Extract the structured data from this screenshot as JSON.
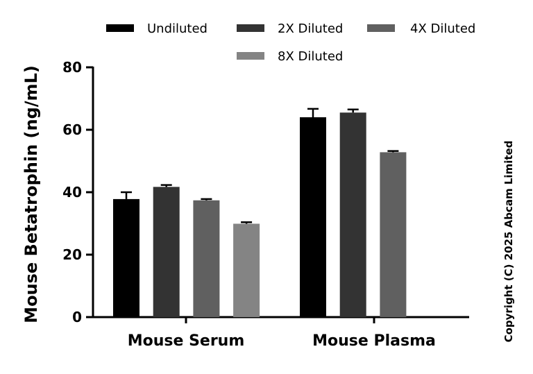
{
  "chart_data": {
    "type": "bar",
    "categories": [
      "Mouse Serum",
      "Mouse Plasma"
    ],
    "series": [
      {
        "name": "Undiluted",
        "color": "#000000",
        "values": [
          37.8,
          64.0
        ],
        "errors": [
          2.2,
          2.7
        ]
      },
      {
        "name": "2X Diluted",
        "color": "#333333",
        "values": [
          41.7,
          65.5
        ],
        "errors": [
          0.6,
          1.0
        ]
      },
      {
        "name": "4X Diluted",
        "color": "#606060",
        "values": [
          37.4,
          52.8
        ],
        "errors": [
          0.4,
          0.4
        ]
      },
      {
        "name": "8X Diluted",
        "color": "#848484",
        "values": [
          29.9,
          null
        ],
        "errors": [
          0.5,
          null
        ]
      }
    ],
    "ylabel": "Mouse Betatrophin (ng/mL)",
    "xlabel": "",
    "ylim": [
      0,
      80
    ],
    "yticks": [
      "0",
      "20",
      "40",
      "60",
      "80"
    ],
    "grid": false,
    "legend_position": "top"
  },
  "copyright": "Copyright (C) 2025 Abcam Limited"
}
